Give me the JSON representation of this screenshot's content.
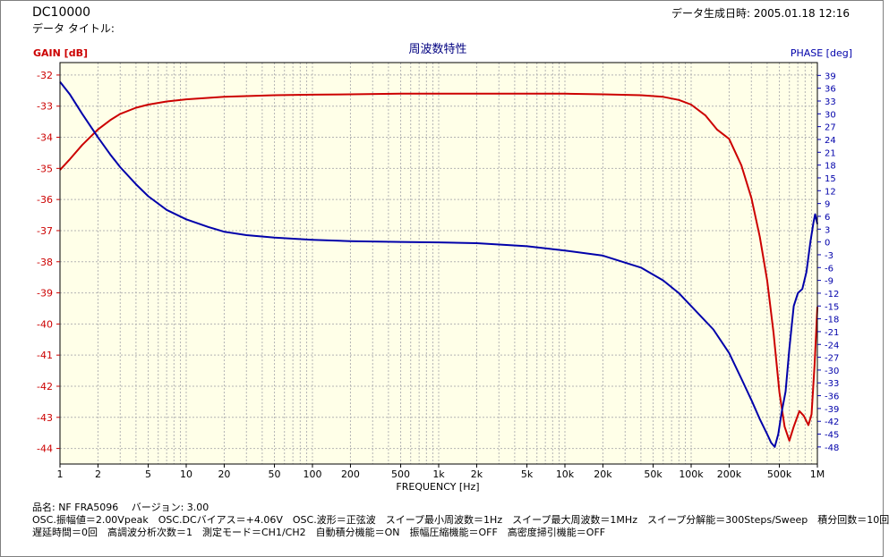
{
  "header": {
    "doc_title": "DC10000",
    "data_title": "データ タイトル:",
    "created": "データ生成日時: 2005.01.18 12:16"
  },
  "footer": {
    "line1": "品名: NF FRA5096　 バージョン: 3.00",
    "line2": "OSC.振幅値＝2.00Vpeak　OSC.DCバイアス＝+4.06V　OSC.波形＝正弦波　スイープ最小周波数＝1Hz　スイープ最大周波数＝1MHz　スイープ分解能＝300Steps/Sweep　積分回数＝10回",
    "line3": "遅延時間＝0回　高調波分析次数＝1　測定モード＝CH1/CH2　自動積分機能＝ON　振幅圧縮機能＝OFF　高密度掃引機能＝OFF"
  },
  "chart_data": {
    "type": "line",
    "title": "周波数特性",
    "xlabel": "FREQUENCY [Hz]",
    "ylabel": "GAIN [dB]",
    "y2label": "PHASE [deg]",
    "xscale": "log",
    "xlim": [
      1,
      1000000
    ],
    "ylim": [
      -44.5,
      -31.6
    ],
    "y2lim": [
      -52,
      42
    ],
    "grid": true,
    "background": "#ffffe8",
    "colors": {
      "gain": "#cc0000",
      "phase": "#0000aa"
    },
    "x_ticks": [
      {
        "v": 1,
        "label": "1"
      },
      {
        "v": 2,
        "label": "2"
      },
      {
        "v": 5,
        "label": "5"
      },
      {
        "v": 10,
        "label": "10"
      },
      {
        "v": 20,
        "label": "20"
      },
      {
        "v": 50,
        "label": "50"
      },
      {
        "v": 100,
        "label": "100"
      },
      {
        "v": 200,
        "label": "200"
      },
      {
        "v": 500,
        "label": "500"
      },
      {
        "v": 1000,
        "label": "1k"
      },
      {
        "v": 2000,
        "label": "2k"
      },
      {
        "v": 5000,
        "label": "5k"
      },
      {
        "v": 10000,
        "label": "10k"
      },
      {
        "v": 20000,
        "label": "20k"
      },
      {
        "v": 50000,
        "label": "50k"
      },
      {
        "v": 100000,
        "label": "100k"
      },
      {
        "v": 200000,
        "label": "200k"
      },
      {
        "v": 500000,
        "label": "500k"
      },
      {
        "v": 1000000,
        "label": "1M"
      }
    ],
    "y_ticks": [
      -32,
      -33,
      -34,
      -35,
      -36,
      -37,
      -38,
      -39,
      -40,
      -41,
      -42,
      -43,
      -44
    ],
    "y2_ticks": [
      39,
      36,
      33,
      30,
      27,
      24,
      21,
      18,
      15,
      12,
      9,
      6,
      3,
      0,
      -3,
      -6,
      -9,
      -12,
      -15,
      -18,
      -21,
      -24,
      -27,
      -30,
      -33,
      -36,
      -39,
      -42,
      -45,
      -48
    ],
    "series": [
      {
        "key": "gain",
        "axis": "left",
        "points": [
          [
            1,
            -35.05
          ],
          [
            1.2,
            -34.7
          ],
          [
            1.5,
            -34.25
          ],
          [
            2,
            -33.75
          ],
          [
            2.5,
            -33.45
          ],
          [
            3,
            -33.25
          ],
          [
            4,
            -33.05
          ],
          [
            5,
            -32.95
          ],
          [
            7,
            -32.85
          ],
          [
            10,
            -32.78
          ],
          [
            20,
            -32.7
          ],
          [
            50,
            -32.65
          ],
          [
            100,
            -32.63
          ],
          [
            200,
            -32.62
          ],
          [
            500,
            -32.6
          ],
          [
            1000,
            -32.6
          ],
          [
            2000,
            -32.6
          ],
          [
            5000,
            -32.6
          ],
          [
            10000,
            -32.6
          ],
          [
            20000,
            -32.62
          ],
          [
            40000,
            -32.65
          ],
          [
            60000,
            -32.7
          ],
          [
            80000,
            -32.8
          ],
          [
            100000,
            -32.95
          ],
          [
            130000,
            -33.3
          ],
          [
            160000,
            -33.75
          ],
          [
            200000,
            -34.05
          ],
          [
            250000,
            -34.9
          ],
          [
            300000,
            -35.95
          ],
          [
            350000,
            -37.2
          ],
          [
            400000,
            -38.6
          ],
          [
            450000,
            -40.3
          ],
          [
            500000,
            -42.2
          ],
          [
            550000,
            -43.3
          ],
          [
            600000,
            -43.75
          ],
          [
            650000,
            -43.3
          ],
          [
            720000,
            -42.8
          ],
          [
            780000,
            -42.95
          ],
          [
            850000,
            -43.25
          ],
          [
            900000,
            -42.9
          ],
          [
            950000,
            -41.3
          ],
          [
            1000000,
            -39.45
          ]
        ]
      },
      {
        "key": "phase",
        "axis": "right",
        "points": [
          [
            1,
            37.5
          ],
          [
            1.2,
            34.5
          ],
          [
            1.5,
            30
          ],
          [
            2,
            24.5
          ],
          [
            2.5,
            20.5
          ],
          [
            3,
            17.5
          ],
          [
            4,
            13.5
          ],
          [
            5,
            10.7
          ],
          [
            7,
            7.5
          ],
          [
            10,
            5.3
          ],
          [
            15,
            3.5
          ],
          [
            20,
            2.4
          ],
          [
            30,
            1.6
          ],
          [
            50,
            1
          ],
          [
            100,
            0.5
          ],
          [
            200,
            0.2
          ],
          [
            500,
            0
          ],
          [
            1000,
            -0.1
          ],
          [
            2000,
            -0.3
          ],
          [
            5000,
            -1
          ],
          [
            10000,
            -2
          ],
          [
            20000,
            -3.2
          ],
          [
            40000,
            -6
          ],
          [
            60000,
            -9
          ],
          [
            80000,
            -12
          ],
          [
            100000,
            -15
          ],
          [
            150000,
            -20.5
          ],
          [
            200000,
            -26
          ],
          [
            250000,
            -32
          ],
          [
            300000,
            -37
          ],
          [
            350000,
            -41.5
          ],
          [
            400000,
            -45
          ],
          [
            430000,
            -47
          ],
          [
            460000,
            -48
          ],
          [
            490000,
            -45
          ],
          [
            520000,
            -40
          ],
          [
            560000,
            -35
          ],
          [
            600000,
            -25
          ],
          [
            650000,
            -15
          ],
          [
            700000,
            -12
          ],
          [
            760000,
            -11
          ],
          [
            820000,
            -7
          ],
          [
            880000,
            0
          ],
          [
            930000,
            4.5
          ],
          [
            960000,
            6.5
          ],
          [
            1000000,
            4.2
          ]
        ]
      }
    ]
  }
}
